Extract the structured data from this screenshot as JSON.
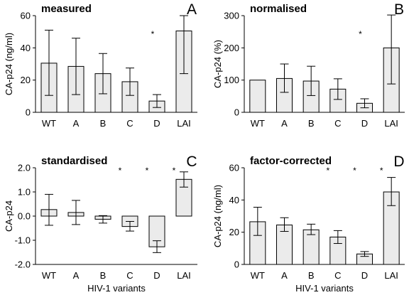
{
  "chart_data": [
    {
      "type": "bar",
      "title": "measured",
      "panel_label": "A",
      "ylabel": "CA-p24 (ng/ml)",
      "xlabel": "",
      "categories": [
        "WT",
        "A",
        "B",
        "C",
        "D",
        "LAI"
      ],
      "values": [
        30.5,
        28.5,
        24,
        19,
        7,
        50.5
      ],
      "err_low": [
        10.5,
        11,
        11.5,
        10.5,
        3,
        24
      ],
      "err_high": [
        51,
        46,
        36.5,
        27.5,
        11,
        60
      ],
      "significant": [
        false,
        false,
        false,
        false,
        true,
        false
      ],
      "ylim": [
        0,
        60
      ],
      "yticks": [
        0,
        20,
        40,
        60
      ],
      "ytick_labels": [
        "0",
        "20",
        "40",
        "60"
      ]
    },
    {
      "type": "bar",
      "title": "normalised",
      "panel_label": "B",
      "ylabel": "CA-p24 (%)",
      "xlabel": "",
      "categories": [
        "WT",
        "A",
        "B",
        "C",
        "D",
        "LAI"
      ],
      "values": [
        100,
        105,
        97,
        72,
        28,
        200
      ],
      "err_low": [
        100,
        62,
        52,
        40,
        14,
        88
      ],
      "err_high": [
        100,
        150,
        143,
        104,
        42,
        302
      ],
      "significant": [
        false,
        false,
        false,
        false,
        true,
        false
      ],
      "ylim": [
        0,
        300
      ],
      "yticks": [
        0,
        100,
        200,
        300
      ],
      "ytick_labels": [
        "0",
        "100",
        "200",
        "300"
      ]
    },
    {
      "type": "bar",
      "title": "standardised",
      "panel_label": "C",
      "ylabel": "CA-p24",
      "xlabel": "HIV-1 variants",
      "categories": [
        "WT",
        "A",
        "B",
        "C",
        "D",
        "LAI"
      ],
      "values": [
        0.27,
        0.15,
        -0.13,
        -0.43,
        -1.27,
        1.52
      ],
      "err_low": [
        -0.38,
        -0.35,
        -0.29,
        -0.62,
        -1.51,
        1.2
      ],
      "err_high": [
        0.9,
        0.65,
        0.02,
        -0.22,
        -1.02,
        1.83
      ],
      "significant": [
        false,
        false,
        false,
        true,
        true,
        true
      ],
      "ylim": [
        -2,
        2
      ],
      "yticks": [
        -2,
        -1,
        0,
        1,
        2
      ],
      "ytick_labels": [
        "-2.0",
        "-1.0",
        "0.0",
        "1.0",
        "2.0"
      ]
    },
    {
      "type": "bar",
      "title": "factor-corrected",
      "panel_label": "D",
      "ylabel": "CA-p24 (ng/ml)",
      "xlabel": "HIV-1 variants",
      "categories": [
        "WT",
        "A",
        "B",
        "C",
        "D",
        "LAI"
      ],
      "values": [
        26.5,
        24.5,
        21.5,
        17,
        6.5,
        45
      ],
      "err_low": [
        18,
        20.5,
        18.5,
        13,
        5,
        36.5
      ],
      "err_high": [
        35.5,
        29,
        25,
        21,
        8,
        54
      ],
      "significant": [
        false,
        false,
        false,
        true,
        true,
        true
      ],
      "ylim": [
        0,
        60
      ],
      "yticks": [
        0,
        20,
        40,
        60
      ],
      "ytick_labels": [
        "0",
        "20",
        "40",
        "60"
      ]
    }
  ],
  "significance_mark": "*"
}
